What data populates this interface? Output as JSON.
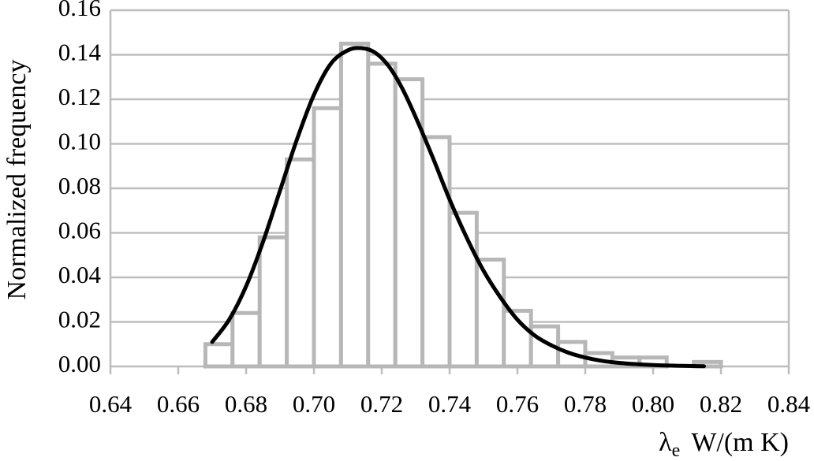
{
  "colors": {
    "bar_outline": "#b7b7b7",
    "grid": "#bdbdbd",
    "curve": "#000000"
  },
  "chart_data": {
    "type": "bar",
    "xlabel": {
      "symbol": "λ",
      "subscript": "e",
      "unit": "W/(m K)"
    },
    "ylabel": "Normalized frequency",
    "xlim": [
      0.64,
      0.84
    ],
    "ylim": [
      0.0,
      0.16
    ],
    "x_ticks": [
      "0.64",
      "0.66",
      "0.68",
      "0.70",
      "0.72",
      "0.74",
      "0.76",
      "0.78",
      "0.80",
      "0.82",
      "0.84"
    ],
    "y_ticks": [
      "0.00",
      "0.02",
      "0.04",
      "0.06",
      "0.08",
      "0.10",
      "0.12",
      "0.14",
      "0.16"
    ],
    "grid": "horizontal",
    "bin_width": 0.008,
    "bins": [
      {
        "x_start": 0.668,
        "value": 0.01
      },
      {
        "x_start": 0.676,
        "value": 0.024
      },
      {
        "x_start": 0.684,
        "value": 0.058
      },
      {
        "x_start": 0.692,
        "value": 0.093
      },
      {
        "x_start": 0.7,
        "value": 0.116
      },
      {
        "x_start": 0.708,
        "value": 0.145
      },
      {
        "x_start": 0.716,
        "value": 0.136
      },
      {
        "x_start": 0.724,
        "value": 0.129
      },
      {
        "x_start": 0.732,
        "value": 0.103
      },
      {
        "x_start": 0.74,
        "value": 0.069
      },
      {
        "x_start": 0.748,
        "value": 0.048
      },
      {
        "x_start": 0.756,
        "value": 0.025
      },
      {
        "x_start": 0.764,
        "value": 0.018
      },
      {
        "x_start": 0.772,
        "value": 0.011
      },
      {
        "x_start": 0.78,
        "value": 0.006
      },
      {
        "x_start": 0.788,
        "value": 0.004
      },
      {
        "x_start": 0.796,
        "value": 0.004
      },
      {
        "x_start": 0.804,
        "value": 0.0
      },
      {
        "x_start": 0.812,
        "value": 0.002
      }
    ],
    "fit_curve": {
      "x": [
        0.67,
        0.675,
        0.68,
        0.685,
        0.69,
        0.695,
        0.7,
        0.705,
        0.71,
        0.714,
        0.718,
        0.722,
        0.726,
        0.73,
        0.735,
        0.74,
        0.745,
        0.75,
        0.755,
        0.76,
        0.765,
        0.77,
        0.775,
        0.78,
        0.785,
        0.79,
        0.795,
        0.8,
        0.805,
        0.81,
        0.815
      ],
      "y": [
        0.011,
        0.021,
        0.036,
        0.056,
        0.079,
        0.102,
        0.122,
        0.136,
        0.142,
        0.143,
        0.141,
        0.135,
        0.125,
        0.112,
        0.094,
        0.075,
        0.058,
        0.043,
        0.031,
        0.021,
        0.014,
        0.0095,
        0.0062,
        0.004,
        0.0025,
        0.0016,
        0.001,
        0.0006,
        0.0004,
        0.0002,
        0.0001
      ]
    }
  }
}
